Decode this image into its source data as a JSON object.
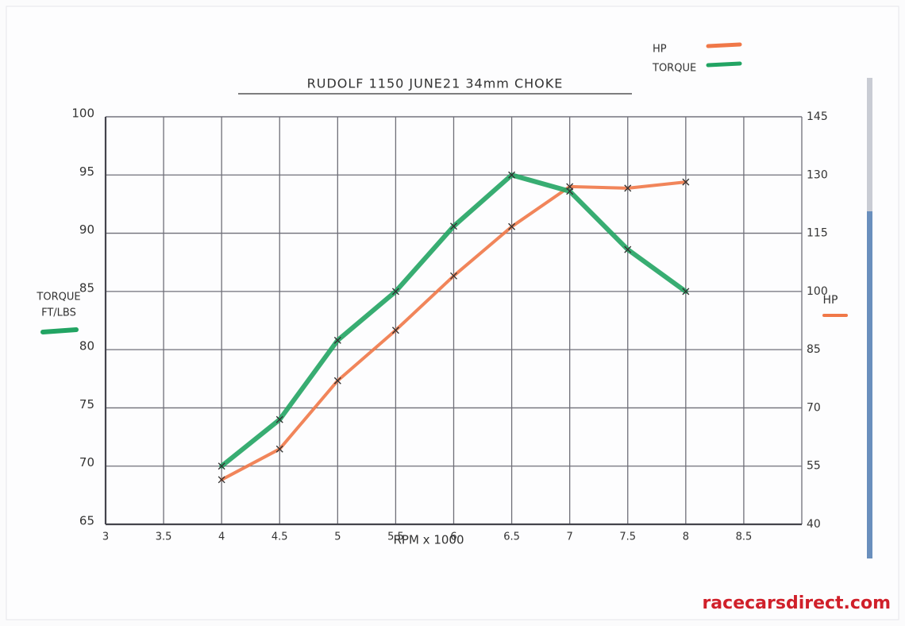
{
  "chart_data": {
    "type": "line",
    "title": "RUDOLF 1150 JUNE21 34mm CHOKE",
    "xlabel": "RPM x 1000",
    "ylabel": [
      "TORQUE",
      "FT/LBS"
    ],
    "y2label": "HP",
    "x": [
      4,
      4.5,
      5,
      5.5,
      6,
      6.5,
      7,
      7.5,
      8
    ],
    "xlim": [
      3,
      9
    ],
    "xticks": [
      3,
      3.5,
      4,
      4.5,
      5,
      5.5,
      6,
      6.5,
      7,
      7.5,
      8,
      8.5
    ],
    "ylim": [
      65,
      100
    ],
    "yticks": [
      65,
      70,
      75,
      80,
      85,
      90,
      95,
      100
    ],
    "y2lim": [
      40,
      145
    ],
    "y2ticks": [
      40,
      55,
      70,
      85,
      100,
      115,
      130,
      145
    ],
    "grid": true,
    "legend": "top-right",
    "series": [
      {
        "name": "HP",
        "color": "#f07848",
        "axis": "y2",
        "values": [
          51.5,
          59.4,
          77,
          90,
          104,
          116.7,
          127,
          126.6,
          128.2
        ]
      },
      {
        "name": "TORQUE",
        "color": "#22a463",
        "values": [
          70,
          74,
          80.8,
          85,
          90.6,
          95,
          93.6,
          88.6,
          85
        ]
      }
    ],
    "watermark": "racecarsdirect.com"
  }
}
